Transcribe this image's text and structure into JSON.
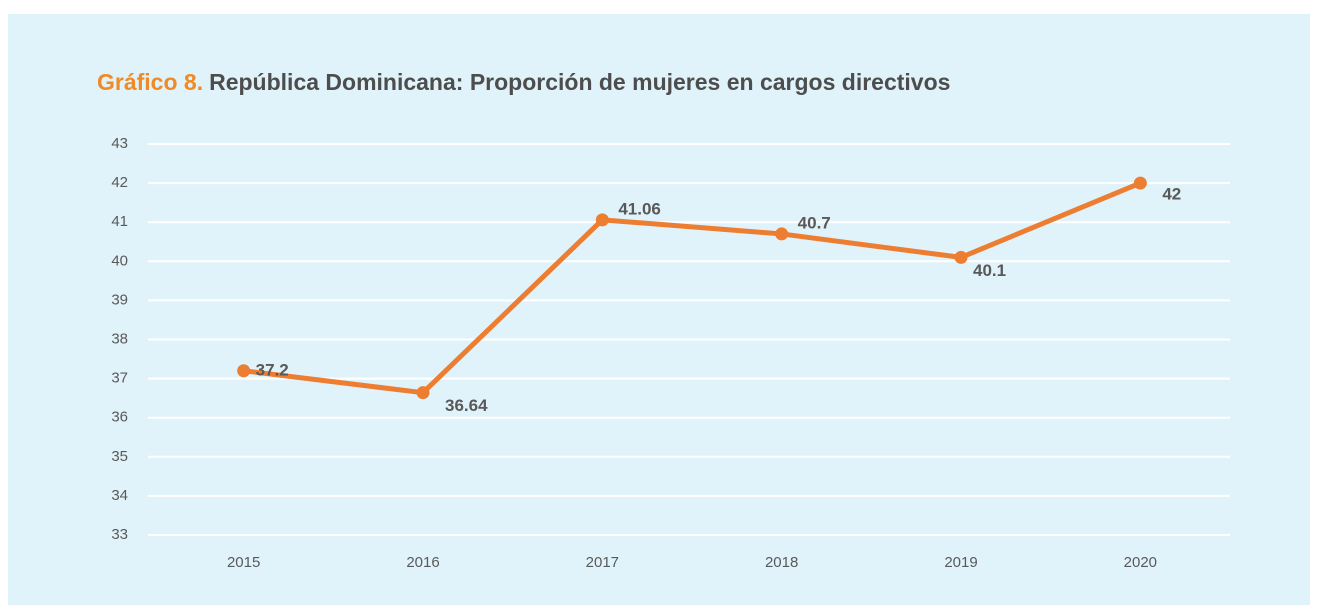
{
  "chart_data": {
    "type": "line",
    "figure_label": "Gráfico 8.",
    "title": "República Dominicana: Proporción de mujeres en cargos directivos",
    "categories": [
      "2015",
      "2016",
      "2017",
      "2018",
      "2019",
      "2020"
    ],
    "series": [
      {
        "name": "Proporción de mujeres en cargos directivos",
        "color": "#ed7d31",
        "values": [
          37.2,
          36.64,
          41.06,
          40.7,
          40.1,
          42
        ]
      }
    ],
    "ylim": [
      33,
      43
    ],
    "yticks": [
      33,
      34,
      35,
      36,
      37,
      38,
      39,
      40,
      41,
      42,
      43
    ],
    "grid": true
  }
}
